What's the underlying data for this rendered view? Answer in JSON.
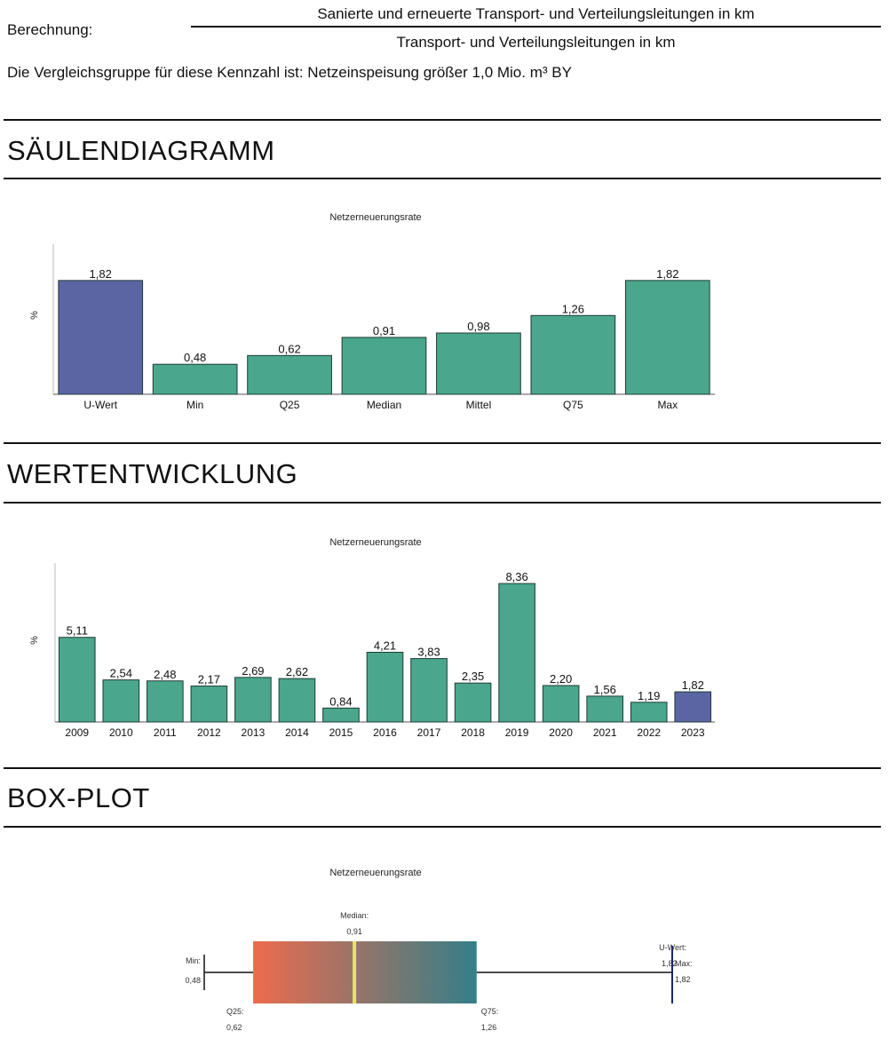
{
  "formula": {
    "label": "Berechnung:",
    "numerator": "Sanierte und erneuerte Transport- und Verteilungsleitungen in km",
    "denominator": "Transport- und Verteilungsleitungen in km"
  },
  "comparison_group": "Die Vergleichsgruppe für diese Kennzahl ist:  Netzeinspeisung größer 1,0 Mio. m³ BY",
  "sections": {
    "bar": {
      "title": "SÄULENDIAGRAMM"
    },
    "trend": {
      "title": "WERTENTWICKLUNG"
    },
    "box": {
      "title": "BOX-PLOT"
    }
  },
  "colors": {
    "highlight": "#5c65a4",
    "normal": "#4aa68d",
    "box_left": "#ee6b4e",
    "box_right": "#337f88",
    "median_line": "#e7e36a",
    "uwert_line": "#1a237e"
  },
  "chart_data": [
    {
      "type": "bar",
      "title": "Netzerneuerungsrate",
      "ylabel": "%",
      "categories": [
        "U-Wert",
        "Min",
        "Q25",
        "Median",
        "Mittel",
        "Q75",
        "Max"
      ],
      "values": [
        1.82,
        0.48,
        0.62,
        0.91,
        0.98,
        1.26,
        1.82
      ],
      "labels": [
        "1,82",
        "0,48",
        "0,62",
        "0,91",
        "0,98",
        "1,26",
        "1,82"
      ],
      "highlight_index": 0,
      "ylim": [
        0,
        2.4
      ]
    },
    {
      "type": "bar",
      "title": "Netzerneuerungsrate",
      "ylabel": "%",
      "categories": [
        "2009",
        "2010",
        "2011",
        "2012",
        "2013",
        "2014",
        "2015",
        "2016",
        "2017",
        "2018",
        "2019",
        "2020",
        "2021",
        "2022",
        "2023"
      ],
      "values": [
        5.11,
        2.54,
        2.48,
        2.17,
        2.69,
        2.62,
        0.84,
        4.21,
        3.83,
        2.35,
        8.36,
        2.2,
        1.56,
        1.19,
        1.82
      ],
      "labels": [
        "5,11",
        "2,54",
        "2,48",
        "2,17",
        "2,69",
        "2,62",
        "0,84",
        "4,21",
        "3,83",
        "2,35",
        "8,36",
        "2,20",
        "1,56",
        "1,19",
        "1,82"
      ],
      "highlight_index": 14,
      "ylim": [
        0,
        9.6
      ]
    },
    {
      "type": "box",
      "title": "Netzerneuerungsrate",
      "min": 0.48,
      "q25": 0.62,
      "median": 0.91,
      "q75": 1.26,
      "max": 1.82,
      "u_wert": 1.82,
      "xlim": [
        0.38,
        1.92
      ],
      "labels": {
        "min": "Min:",
        "min_value": "0,48",
        "q25": "Q25:",
        "q25_value": "0,62",
        "median": "Median:",
        "median_value": "0,91",
        "q75": "Q75:",
        "q75_value": "1,26",
        "max": "Max:",
        "max_value": "1,82",
        "u_wert": "U-Wert:",
        "u_wert_value": "1,82"
      }
    }
  ]
}
